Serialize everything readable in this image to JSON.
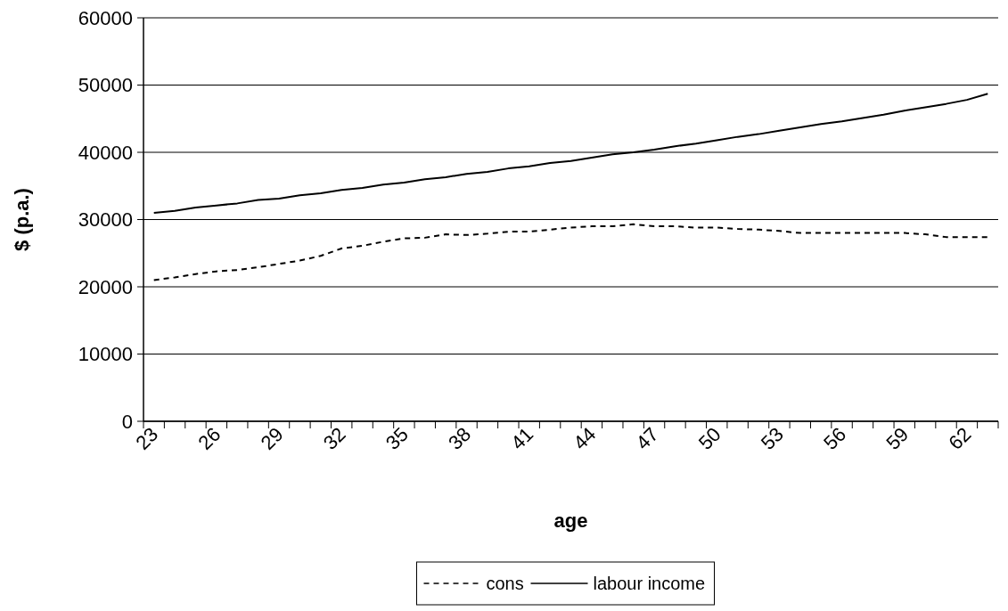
{
  "chart_data": {
    "type": "line",
    "xlabel": "age",
    "ylabel": "$ (p.a.)",
    "categories": [
      "23",
      null,
      null,
      "26",
      null,
      null,
      "29",
      null,
      null,
      "32",
      null,
      null,
      "35",
      null,
      null,
      "38",
      null,
      null,
      "41",
      null,
      null,
      "44",
      null,
      null,
      "47",
      null,
      null,
      "50",
      null,
      null,
      "53",
      null,
      null,
      "56",
      null,
      null,
      "59",
      null,
      null,
      "62",
      null
    ],
    "series": [
      {
        "name": "cons",
        "color": "#000000",
        "line_style": "dashed",
        "values": [
          21000,
          21400,
          21900,
          22300,
          22500,
          22900,
          23400,
          23900,
          24600,
          25700,
          26100,
          26700,
          27200,
          27300,
          27800,
          27700,
          27900,
          28200,
          28200,
          28500,
          28800,
          29000,
          29000,
          29300,
          29000,
          29000,
          28800,
          28800,
          28600,
          28500,
          28300,
          28000,
          28000,
          28000,
          28000,
          28000,
          28000,
          27800,
          27400,
          27400,
          27400
        ]
      },
      {
        "name": "labour income",
        "color": "#000000",
        "line_style": "solid",
        "values": [
          31000,
          31300,
          31800,
          32100,
          32400,
          32900,
          33100,
          33600,
          33900,
          34400,
          34700,
          35200,
          35500,
          36000,
          36300,
          36800,
          37100,
          37600,
          37900,
          38400,
          38700,
          39200,
          39700,
          40000,
          40400,
          40900,
          41300,
          41800,
          42300,
          42700,
          43200,
          43700,
          44200,
          44600,
          45100,
          45600,
          46200,
          46700,
          47200,
          47800,
          48700
        ]
      }
    ],
    "ylim": [
      0,
      60000
    ],
    "yticks": [
      0,
      10000,
      20000,
      30000,
      40000,
      50000,
      60000
    ],
    "grid": "y",
    "legend": "bottom",
    "marker": "none"
  }
}
